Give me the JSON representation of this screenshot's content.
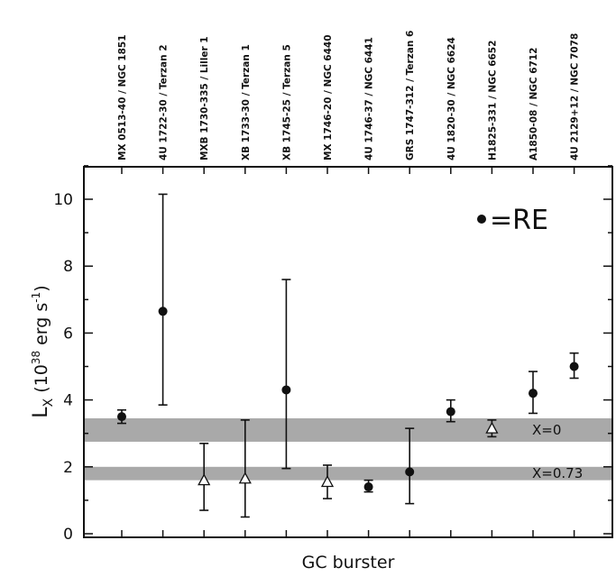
{
  "chart_data": {
    "type": "scatter",
    "categories": [
      "MX 0513-40 / NGC 1851",
      "4U 1722-30 / Terzan 2",
      "MXB 1730-335 / Liller 1",
      "XB 1733-30 / Terzan 1",
      "XB 1745-25 / Terzan 5",
      "MX 1746-20 / NGC 6440",
      "4U 1746-37 / NGC 6441",
      "GRS 1747-312 / Terzan 6",
      "4U 1820-30 / NGC 6624",
      "H1825-331 / NGC 6652",
      "A1850-08 / NGC 6712",
      "4U 2129+12 / NGC 7078"
    ],
    "ylabel_main": "L",
    "ylabel_sub": "X",
    "ylabel_open": " (10",
    "ylabel_exp": "38",
    "ylabel_mid": " erg s",
    "ylabel_exp2": "-1",
    "ylabel_close": ")",
    "xlabel": "GC burster",
    "ylim": [
      0,
      11
    ],
    "yticks": [
      "0",
      "2",
      "4",
      "6",
      "8",
      "10"
    ],
    "legend": {
      "marker": "filled-circle",
      "label": "=RE"
    },
    "bands": [
      {
        "label": "X=0",
        "y_low": 2.75,
        "y_high": 3.45
      },
      {
        "label": "X=0.73",
        "y_low": 1.6,
        "y_high": 2.0
      }
    ],
    "series": [
      {
        "name": "RE",
        "marker": "filled-circle",
        "points": [
          {
            "category": 0,
            "y": 3.5,
            "low": 3.3,
            "high": 3.7
          },
          {
            "category": 1,
            "y": 6.65,
            "low": 3.85,
            "high": 10.15
          },
          {
            "category": 4,
            "y": 4.3,
            "low": 1.95,
            "high": 7.6
          },
          {
            "category": 6,
            "y": 1.4,
            "low": 1.25,
            "high": 1.6
          },
          {
            "category": 7,
            "y": 1.85,
            "low": 0.9,
            "high": 3.15
          },
          {
            "category": 8,
            "y": 3.65,
            "low": 3.35,
            "high": 4.0
          },
          {
            "category": 10,
            "y": 4.2,
            "low": 3.6,
            "high": 4.85
          },
          {
            "category": 11,
            "y": 5.0,
            "low": 4.65,
            "high": 5.4
          }
        ]
      },
      {
        "marker": "open-triangle",
        "points": [
          {
            "category": 2,
            "y": 1.6,
            "low": 0.7,
            "high": 2.7
          },
          {
            "category": 3,
            "y": 1.65,
            "low": 0.5,
            "high": 3.4
          },
          {
            "category": 5,
            "y": 1.55,
            "low": 1.05,
            "high": 2.05
          },
          {
            "category": 9,
            "y": 3.15,
            "low": 2.9,
            "high": 3.4
          }
        ]
      }
    ],
    "colors": {
      "band": "#9a9a9a",
      "marker": "#111111",
      "axis": "#111111"
    }
  }
}
